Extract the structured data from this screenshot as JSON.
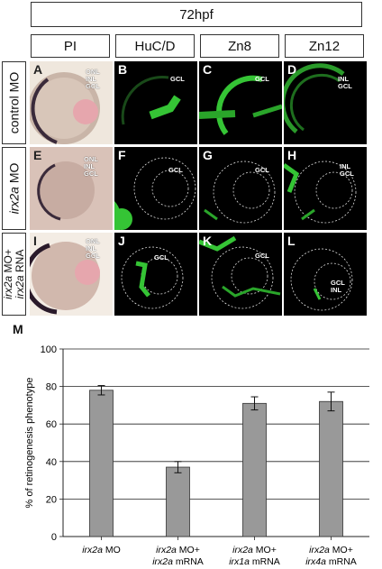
{
  "header": {
    "timepoint": "72hpf"
  },
  "columns": [
    "PI",
    "HuC/D",
    "Zn8",
    "Zn12"
  ],
  "rows": [
    {
      "label_html": "control MO"
    },
    {
      "label_italic": "irx2a",
      "label_rest": " MO"
    },
    {
      "line1_italic": "irx2a",
      "line1_rest": " MO+",
      "line2_italic": "irx2a",
      "line2_rest": " RNA"
    }
  ],
  "panels": [
    {
      "letter": "A",
      "labels": [
        "ONL",
        "INL",
        "GCL"
      ]
    },
    {
      "letter": "B",
      "labels": [
        "GCL"
      ]
    },
    {
      "letter": "C",
      "labels": [
        "GCL"
      ]
    },
    {
      "letter": "D",
      "labels": [
        "INL",
        "GCL"
      ]
    },
    {
      "letter": "E",
      "labels": [
        "ONL",
        "INL",
        "GCL"
      ]
    },
    {
      "letter": "F",
      "labels": [
        "GCL"
      ]
    },
    {
      "letter": "G",
      "labels": [
        "GCL"
      ]
    },
    {
      "letter": "H",
      "labels": [
        "INL",
        "GCL"
      ]
    },
    {
      "letter": "I",
      "labels": [
        "ONL",
        "INL",
        "GCL"
      ]
    },
    {
      "letter": "J",
      "labels": [
        "GCL"
      ]
    },
    {
      "letter": "K",
      "labels": [
        "GCL"
      ]
    },
    {
      "letter": "L",
      "labels": [
        "GCL",
        "INL"
      ]
    }
  ],
  "chart_panel_letter": "M",
  "chart_data": {
    "type": "bar",
    "categories": [
      {
        "line1_italic": "irx2a",
        "line1_rest": " MO",
        "line2_italic": "",
        "line2_rest": ""
      },
      {
        "line1_italic": "irx2a",
        "line1_rest": " MO+",
        "line2_italic": "irx2a",
        "line2_rest": " mRNA"
      },
      {
        "line1_italic": "irx2a",
        "line1_rest": " MO+",
        "line2_italic": "irx1a",
        "line2_rest": " mRNA"
      },
      {
        "line1_italic": "irx2a",
        "line1_rest": " MO+",
        "line2_italic": "irx4a",
        "line2_rest": " mRNA"
      }
    ],
    "values": [
      78,
      37,
      71,
      72
    ],
    "errors": [
      2.5,
      3,
      3.5,
      5
    ],
    "ylabel": "% of retinogenesis phenotype",
    "ylim": [
      0,
      100
    ],
    "yticks": [
      0,
      20,
      40,
      60,
      80,
      100
    ],
    "grid": true,
    "bar_color": "#999999"
  }
}
